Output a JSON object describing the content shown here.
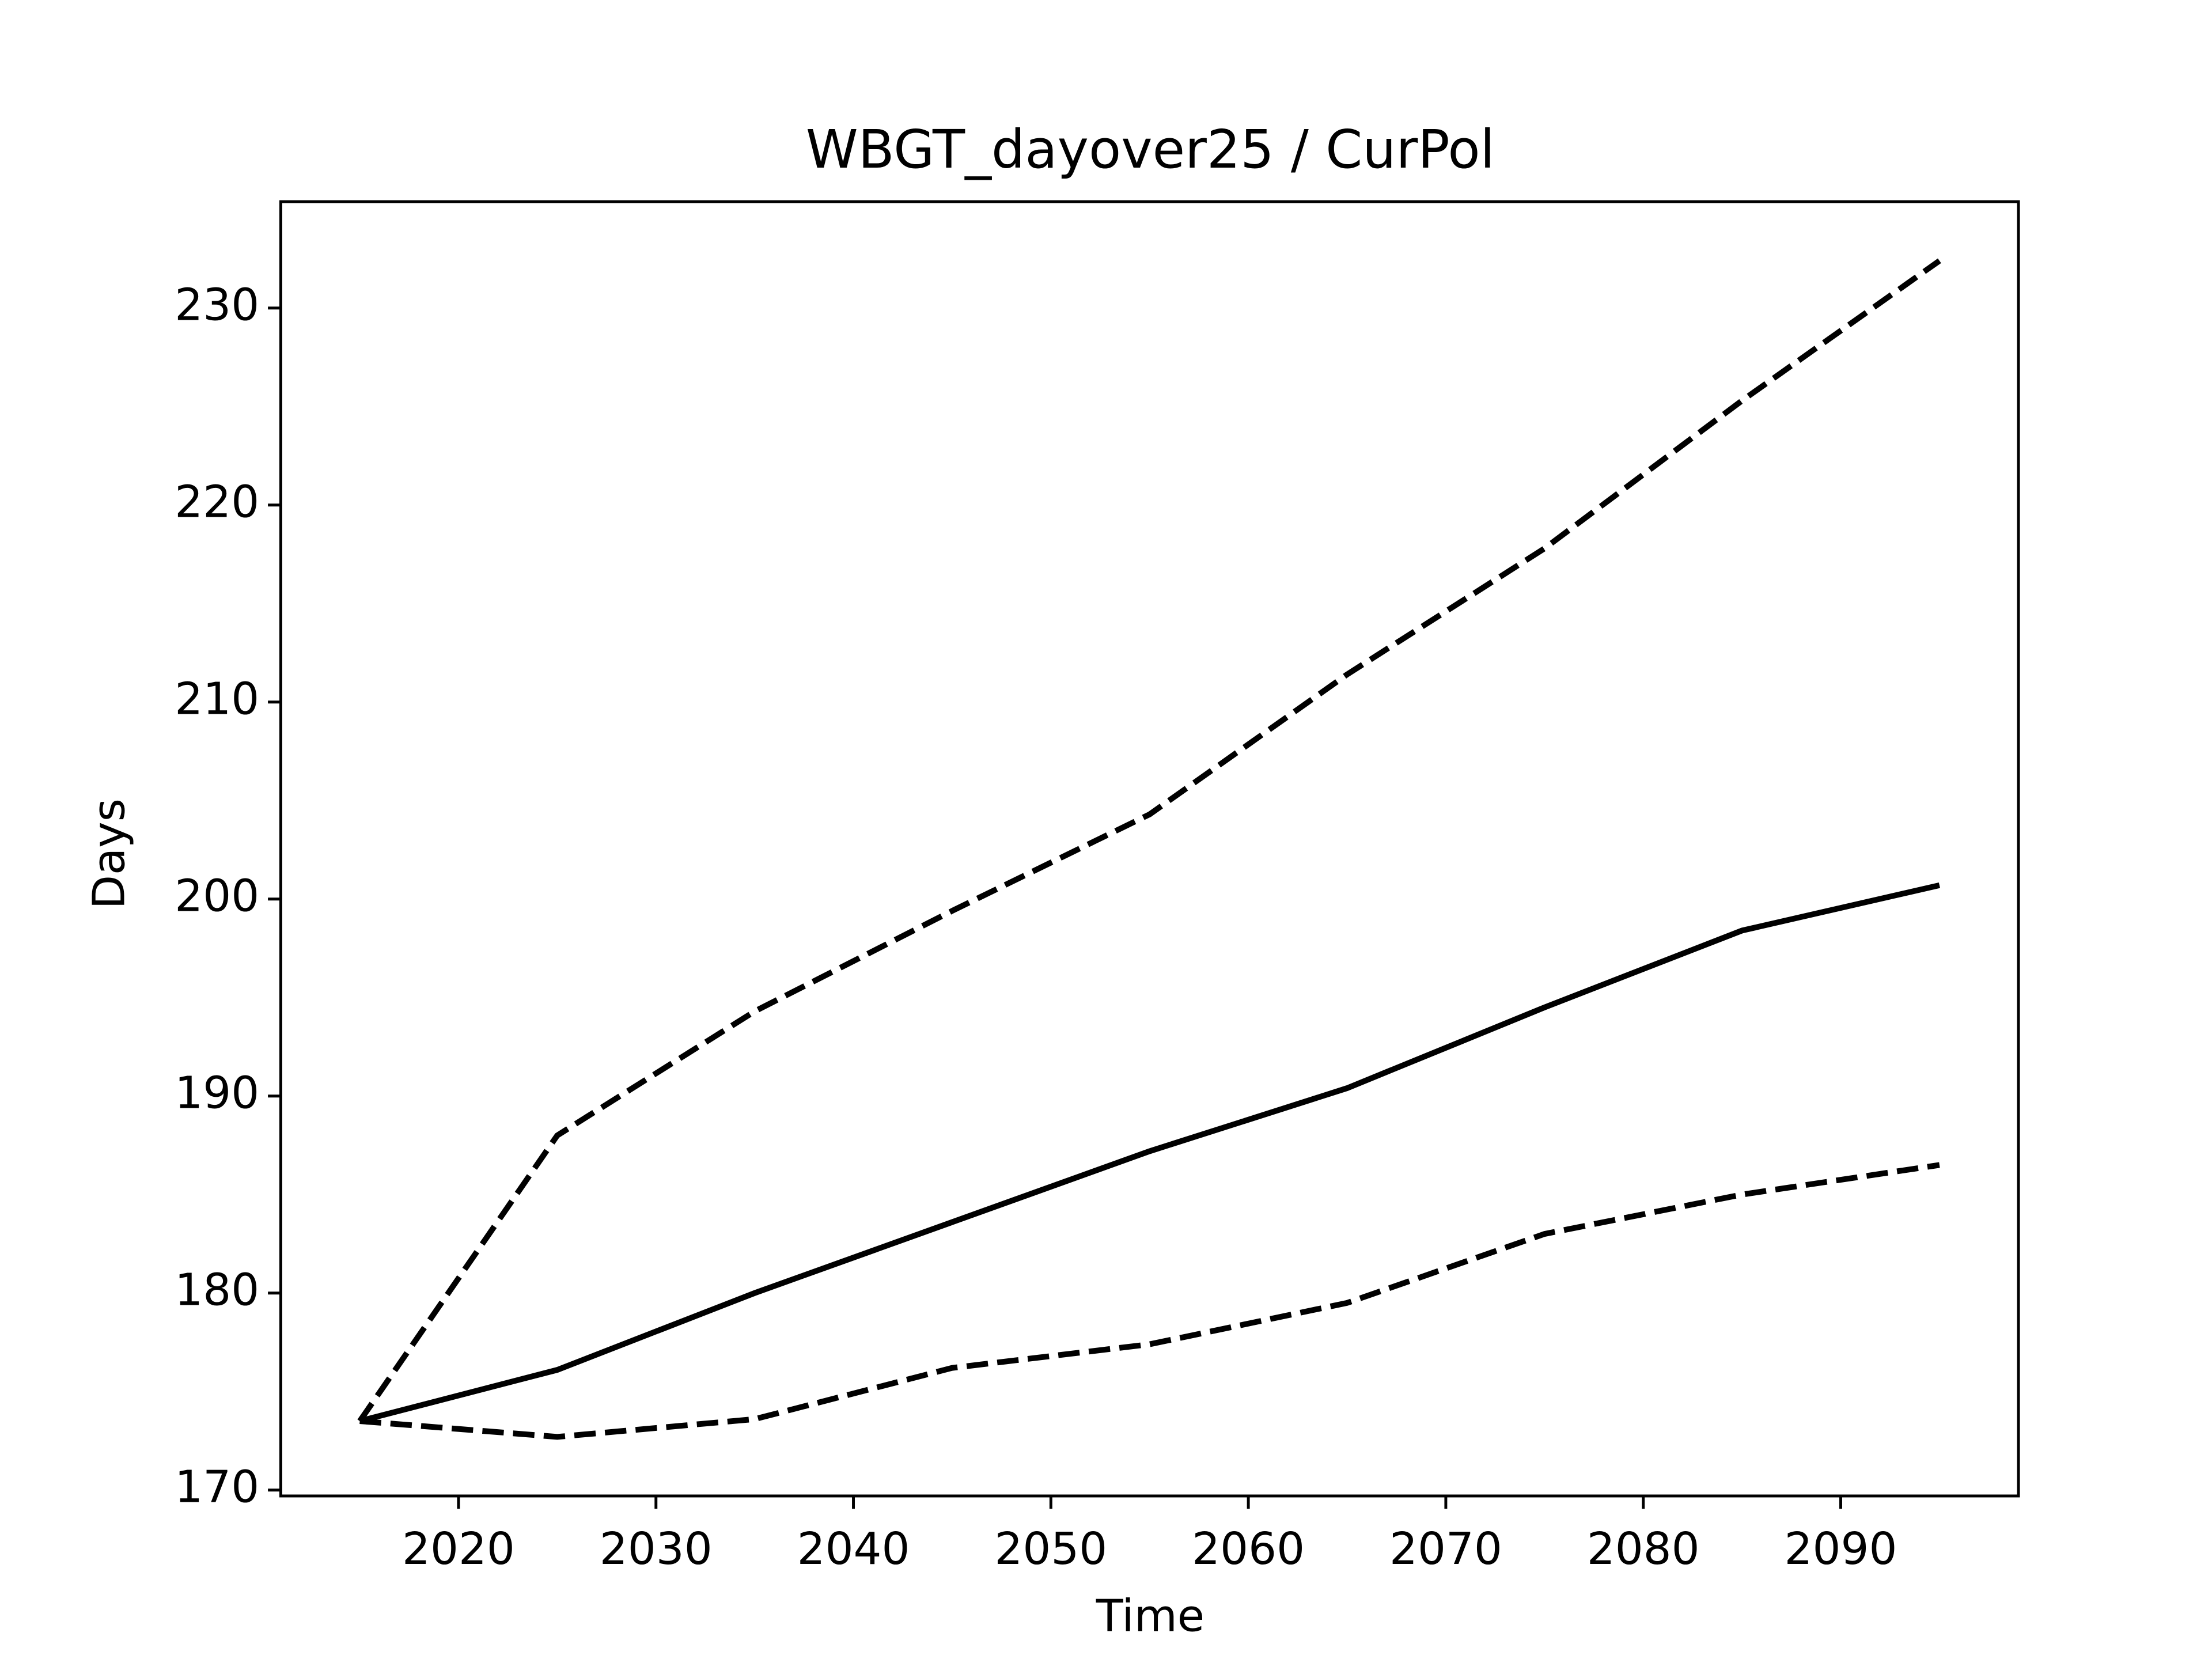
{
  "chart_data": {
    "type": "line",
    "title": "WBGT_dayover25 / CurPol",
    "xlabel": "Time",
    "ylabel": "Days",
    "x": [
      2015,
      2025,
      2035,
      2045,
      2055,
      2065,
      2075,
      2085,
      2095
    ],
    "series": [
      {
        "color": "#000000",
        "style": "solid",
        "values": [
          173.5,
          176.1,
          180.0,
          183.6,
          187.2,
          190.4,
          194.5,
          198.4,
          200.7
        ]
      },
      {
        "color": "#000000",
        "style": "dashed",
        "values": [
          173.5,
          188.0,
          194.3,
          199.4,
          204.3,
          211.4,
          217.8,
          225.3,
          232.4
        ]
      },
      {
        "color": "#000000",
        "style": "dashed",
        "values": [
          173.5,
          172.7,
          173.6,
          176.2,
          177.4,
          179.5,
          183.0,
          185.0,
          186.5
        ]
      }
    ],
    "xlim": [
      2011,
      2099
    ],
    "xticks": [
      2020,
      2030,
      2040,
      2050,
      2060,
      2070,
      2080,
      2090
    ],
    "ylim": [
      169.7,
      235.4
    ],
    "yticks": [
      170,
      180,
      190,
      200,
      210,
      220,
      230
    ]
  }
}
